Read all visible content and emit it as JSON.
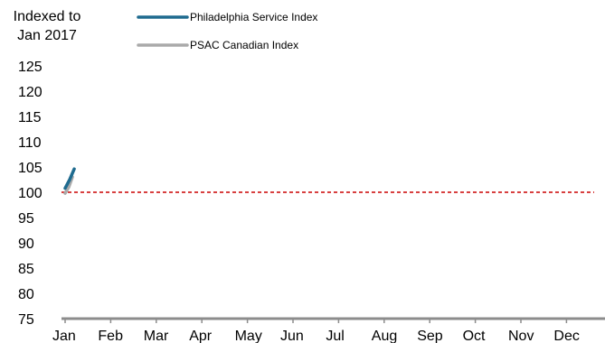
{
  "chart_data": {
    "type": "line",
    "ylabel": "Indexed to Jan 2017",
    "ylim": [
      75,
      125
    ],
    "yticks": [
      75,
      80,
      85,
      90,
      95,
      100,
      105,
      110,
      115,
      120,
      125
    ],
    "categories": [
      "Jan",
      "Feb",
      "Mar",
      "Apr",
      "May",
      "Jun",
      "Jul",
      "Aug",
      "Sep",
      "Oct",
      "Nov",
      "Dec"
    ],
    "reference_line": {
      "value": 100,
      "color": "#cc0000",
      "style": "dashed"
    },
    "legend_position": "top",
    "series": [
      {
        "name": "Philadelphia Service Index",
        "color": "#1f6b8f",
        "points": [
          [
            0.0,
            100.8
          ],
          [
            0.1,
            102.5
          ],
          [
            0.2,
            104.6
          ]
        ]
      },
      {
        "name": "PSAC Canadian Index",
        "color": "#aaaaaa",
        "points": [
          [
            0.0,
            99.8
          ],
          [
            0.08,
            101.0
          ],
          [
            0.16,
            103.0
          ]
        ]
      }
    ]
  }
}
